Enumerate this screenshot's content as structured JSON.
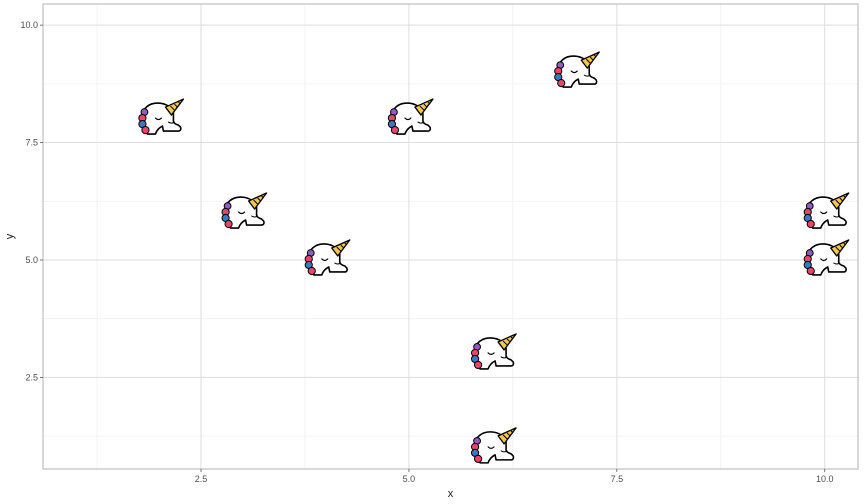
{
  "chart_data": {
    "type": "scatter",
    "title": "",
    "xlabel": "x",
    "ylabel": "y",
    "xlim": [
      0.6,
      10.4
    ],
    "ylim": [
      0.55,
      10.45
    ],
    "x_ticks": [
      2.5,
      5.0,
      7.5,
      10.0
    ],
    "x_tick_labels": [
      "2.5",
      "5.0",
      "7.5",
      "10.0"
    ],
    "y_ticks": [
      2.5,
      5.0,
      7.5,
      10.0
    ],
    "y_tick_labels": [
      "2.5",
      "5.0",
      "7.5",
      "10.0"
    ],
    "grid": true,
    "marker": "unicorn-icon",
    "points": [
      {
        "x": 2,
        "y": 8
      },
      {
        "x": 3,
        "y": 6
      },
      {
        "x": 4,
        "y": 5
      },
      {
        "x": 5,
        "y": 8
      },
      {
        "x": 6,
        "y": 3
      },
      {
        "x": 6,
        "y": 1
      },
      {
        "x": 7,
        "y": 9
      },
      {
        "x": 10,
        "y": 6
      },
      {
        "x": 10,
        "y": 5
      }
    ]
  },
  "colors": {
    "background": "#ffffff",
    "panel_border": "#b3b3b3",
    "grid_major": "#dedede",
    "grid_minor": "#efefef",
    "horn": "#f5c74f",
    "mane_pink": "#e8456b",
    "mane_blue": "#3a78c2",
    "mane_purple": "#8e5cc4",
    "outline": "#000000"
  }
}
